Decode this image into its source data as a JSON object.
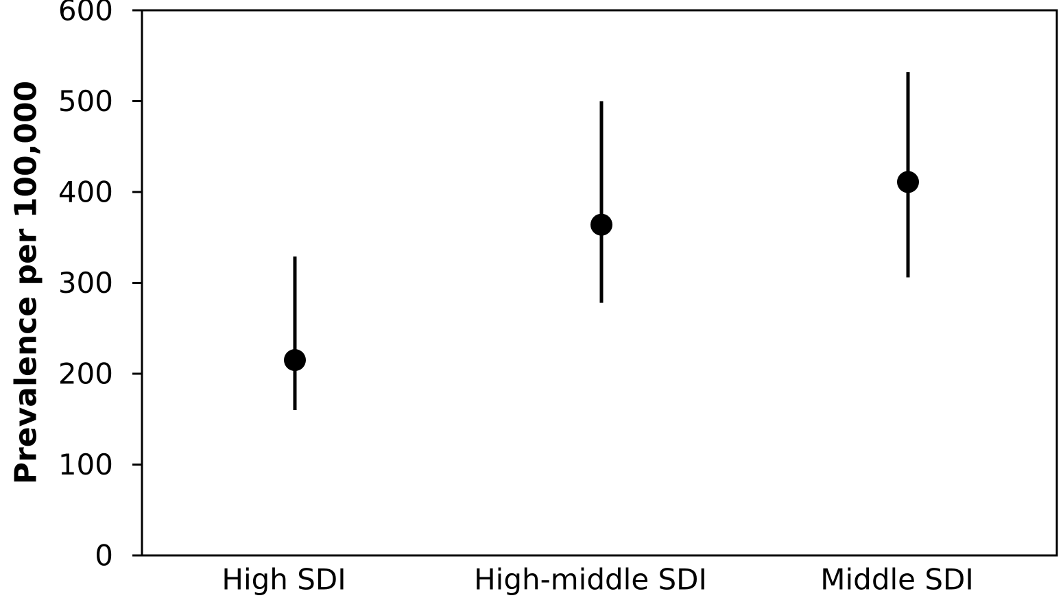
{
  "chart_data": {
    "type": "scatter",
    "title": "",
    "xlabel": "",
    "ylabel": "Prevalence per 100,000",
    "ylim": [
      0,
      600
    ],
    "yticks": [
      0,
      100,
      200,
      300,
      400,
      500,
      600
    ],
    "grid": false,
    "legend": "none",
    "categories": [
      "High SDI",
      "High-middle SDI",
      "Middle SDI"
    ],
    "series": [
      {
        "values": [
          215,
          364,
          411
        ],
        "lower": [
          160,
          278,
          306
        ],
        "upper": [
          329,
          500,
          532
        ]
      }
    ],
    "colors": {
      "marker": "#000000",
      "error_bar": "#000000",
      "axis": "#000000"
    }
  }
}
